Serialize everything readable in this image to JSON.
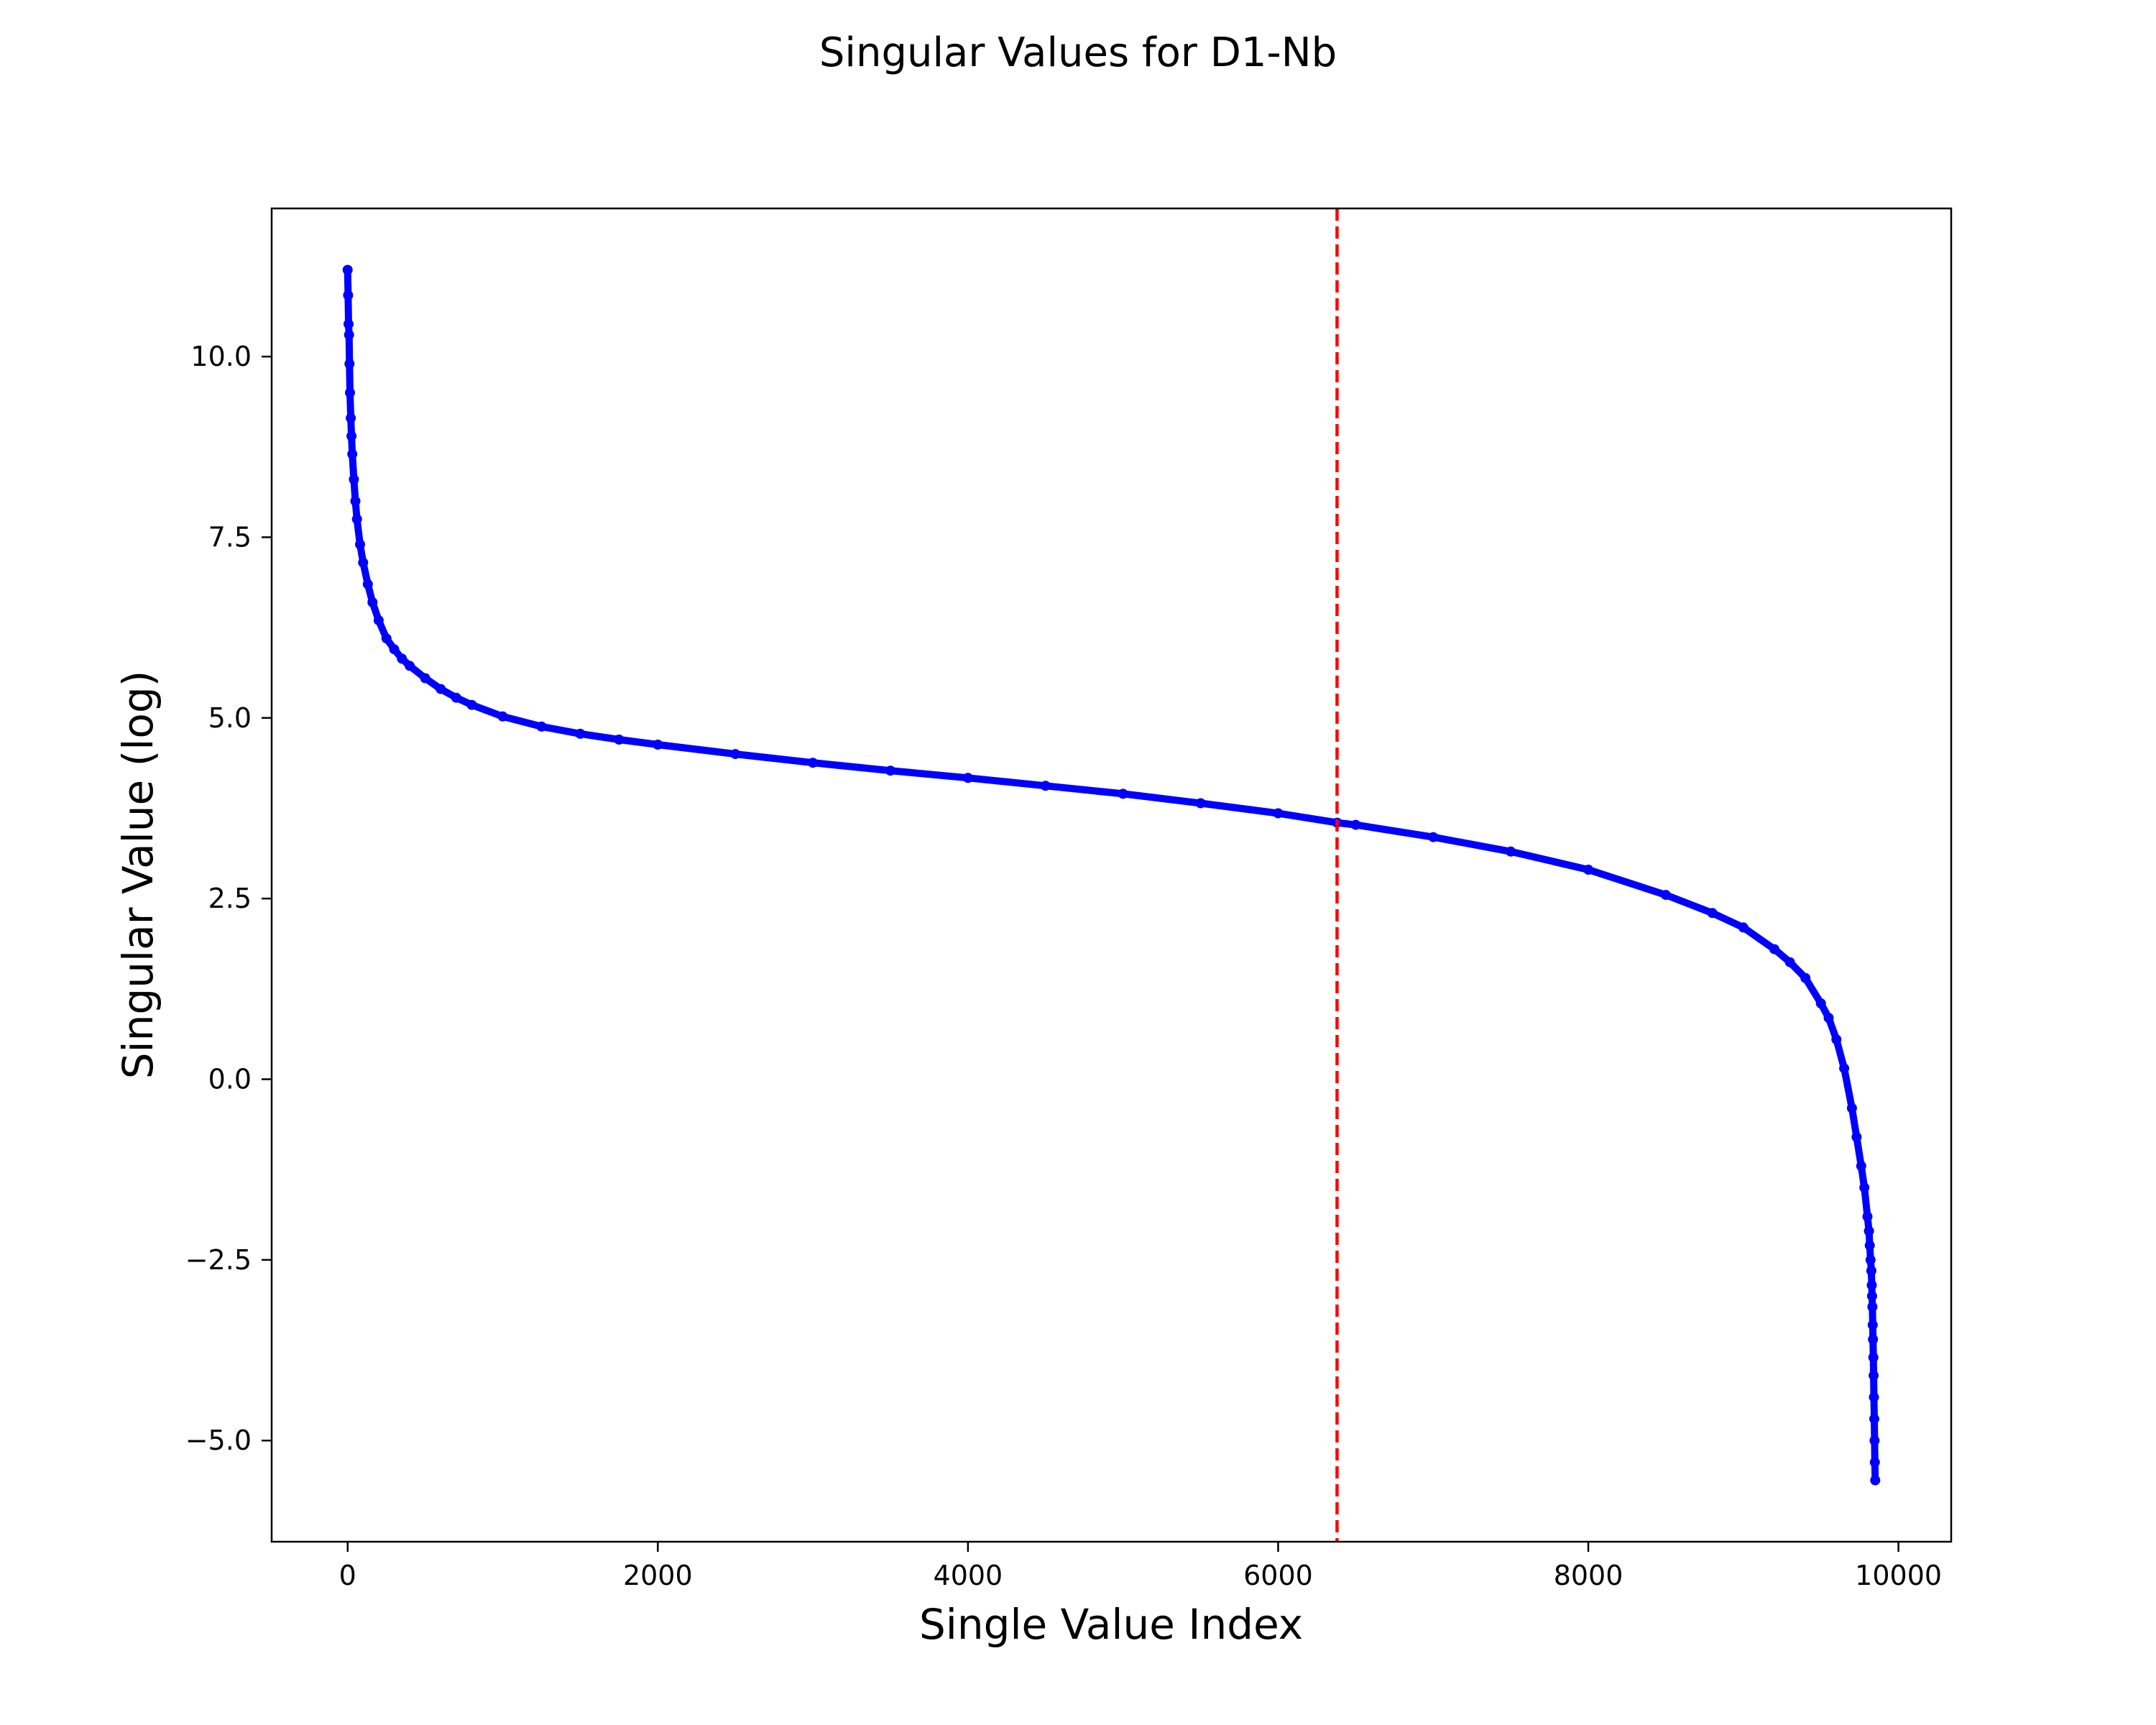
{
  "chart_data": {
    "type": "line",
    "title": "Singular Values for D1-Nb",
    "xlabel": "Single Value Index",
    "ylabel": "Singular Value (log)",
    "xlim": [
      -490,
      10340
    ],
    "ylim": [
      -6.4,
      12.05
    ],
    "x_ticks": [
      0,
      2000,
      4000,
      6000,
      8000,
      10000
    ],
    "x_tick_labels": [
      "0",
      "2000",
      "4000",
      "6000",
      "8000",
      "10000"
    ],
    "y_ticks": [
      -5.0,
      -2.5,
      0.0,
      2.5,
      5.0,
      7.5,
      10.0
    ],
    "y_tick_labels": [
      "−5.0",
      "−2.5",
      "0.0",
      "2.5",
      "5.0",
      "7.5",
      "10.0"
    ],
    "grid": false,
    "legend": "none",
    "series": [
      {
        "color": "#0000ff",
        "marker": "circle",
        "x": [
          0,
          3,
          6,
          9,
          12,
          15,
          20,
          25,
          30,
          40,
          50,
          60,
          80,
          100,
          130,
          160,
          200,
          250,
          300,
          350,
          400,
          500,
          600,
          700,
          800,
          1000,
          1250,
          1500,
          1750,
          2000,
          2500,
          3000,
          3500,
          4000,
          4500,
          5000,
          5500,
          6000,
          6380,
          6500,
          7000,
          7500,
          8000,
          8500,
          8800,
          9000,
          9200,
          9300,
          9400,
          9500,
          9550,
          9600,
          9650,
          9700,
          9730,
          9760,
          9780,
          9800,
          9810,
          9815,
          9820,
          9825,
          9828,
          9830,
          9832,
          9834,
          9836,
          9838,
          9840,
          9842,
          9844,
          9846,
          9848,
          9850
        ],
        "y": [
          11.2,
          10.85,
          10.45,
          10.3,
          9.9,
          9.5,
          9.15,
          8.9,
          8.65,
          8.3,
          8.0,
          7.75,
          7.4,
          7.15,
          6.85,
          6.6,
          6.35,
          6.1,
          5.95,
          5.82,
          5.72,
          5.55,
          5.4,
          5.28,
          5.18,
          5.02,
          4.88,
          4.78,
          4.7,
          4.63,
          4.5,
          4.38,
          4.27,
          4.17,
          4.06,
          3.95,
          3.82,
          3.68,
          3.55,
          3.52,
          3.35,
          3.15,
          2.9,
          2.55,
          2.3,
          2.1,
          1.8,
          1.62,
          1.4,
          1.05,
          0.85,
          0.55,
          0.15,
          -0.4,
          -0.8,
          -1.2,
          -1.5,
          -1.9,
          -2.1,
          -2.3,
          -2.5,
          -2.65,
          -2.85,
          -3.0,
          -3.15,
          -3.4,
          -3.6,
          -3.85,
          -4.1,
          -4.4,
          -4.7,
          -5.0,
          -5.3,
          -5.55
        ]
      }
    ],
    "vline": {
      "x": 6380,
      "color": "#ff0000",
      "style": "dashed"
    }
  }
}
